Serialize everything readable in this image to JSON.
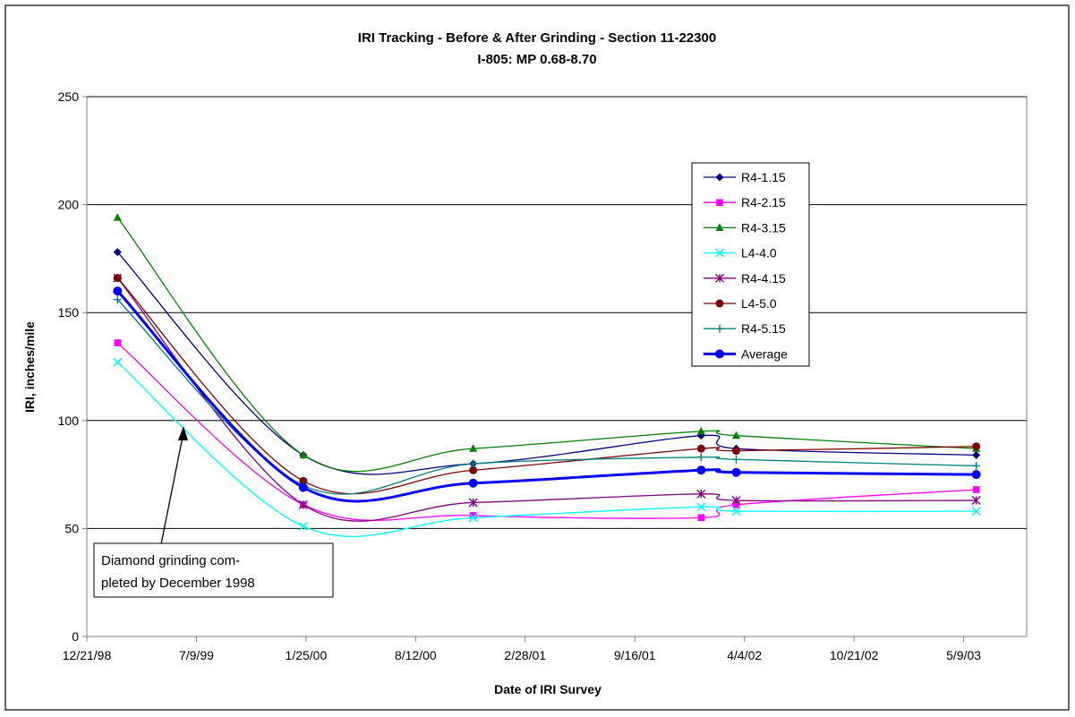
{
  "chart_data": {
    "type": "line",
    "title": "IRI Tracking - Before & After Grinding - Section 11-22300",
    "subtitle": "I-805: MP 0.68-8.70",
    "xlabel": "Date of IRI Survey",
    "ylabel": "IRI, inches/mile",
    "ylim": [
      0,
      250
    ],
    "yticks": [
      0,
      50,
      100,
      150,
      200,
      250
    ],
    "xlim": [
      "1998-12-21",
      "2003-09-01"
    ],
    "xticks": [
      "1998-12-21",
      "1999-07-09",
      "2000-01-25",
      "2000-08-12",
      "2001-02-28",
      "2001-09-16",
      "2002-04-04",
      "2002-10-21",
      "2003-05-09"
    ],
    "xtick_labels": [
      "12/21/98",
      "7/9/99",
      "1/25/00",
      "8/12/00",
      "2/28/01",
      "9/16/01",
      "4/4/02",
      "10/21/02",
      "5/9/03"
    ],
    "grid": "horizontal",
    "legend_position": "right",
    "x": [
      "1999-02-15",
      "2000-01-20",
      "2000-11-25",
      "2002-01-15",
      "2002-03-20",
      "2003-06-01"
    ],
    "series": [
      {
        "name": "R4-1.15",
        "color": "#000080",
        "marker": "diamond",
        "values": [
          178,
          84,
          80,
          93,
          87,
          84
        ]
      },
      {
        "name": "R4-2.15",
        "color": "#ff00ff",
        "marker": "square",
        "values": [
          136,
          61,
          56,
          55,
          61,
          68
        ]
      },
      {
        "name": "R4-3.15",
        "color": "#008000",
        "marker": "triangle",
        "values": [
          194,
          84,
          87,
          95,
          93,
          87
        ]
      },
      {
        "name": "L4-4.0",
        "color": "#00ffff",
        "marker": "x",
        "values": [
          127,
          51,
          55,
          60,
          58,
          58
        ]
      },
      {
        "name": "R4-4.15",
        "color": "#800080",
        "marker": "star",
        "values": [
          166,
          61,
          62,
          66,
          63,
          63
        ]
      },
      {
        "name": "L4-5.0",
        "color": "#800000",
        "marker": "circle",
        "values": [
          166,
          72,
          77,
          87,
          86,
          88
        ]
      },
      {
        "name": "R4-5.15",
        "color": "#008080",
        "marker": "plus",
        "values": [
          156,
          70,
          80,
          83,
          82,
          79
        ]
      },
      {
        "name": "Average",
        "color": "#0000ff",
        "marker": "circle",
        "bold": true,
        "values": [
          160,
          69,
          71,
          77,
          76,
          75
        ]
      }
    ],
    "annotations": [
      {
        "text_lines": [
          "Diamond grinding com-",
          "pleted by December 1998"
        ],
        "arrow_to": [
          "1999-05-20",
          96
        ]
      }
    ]
  }
}
